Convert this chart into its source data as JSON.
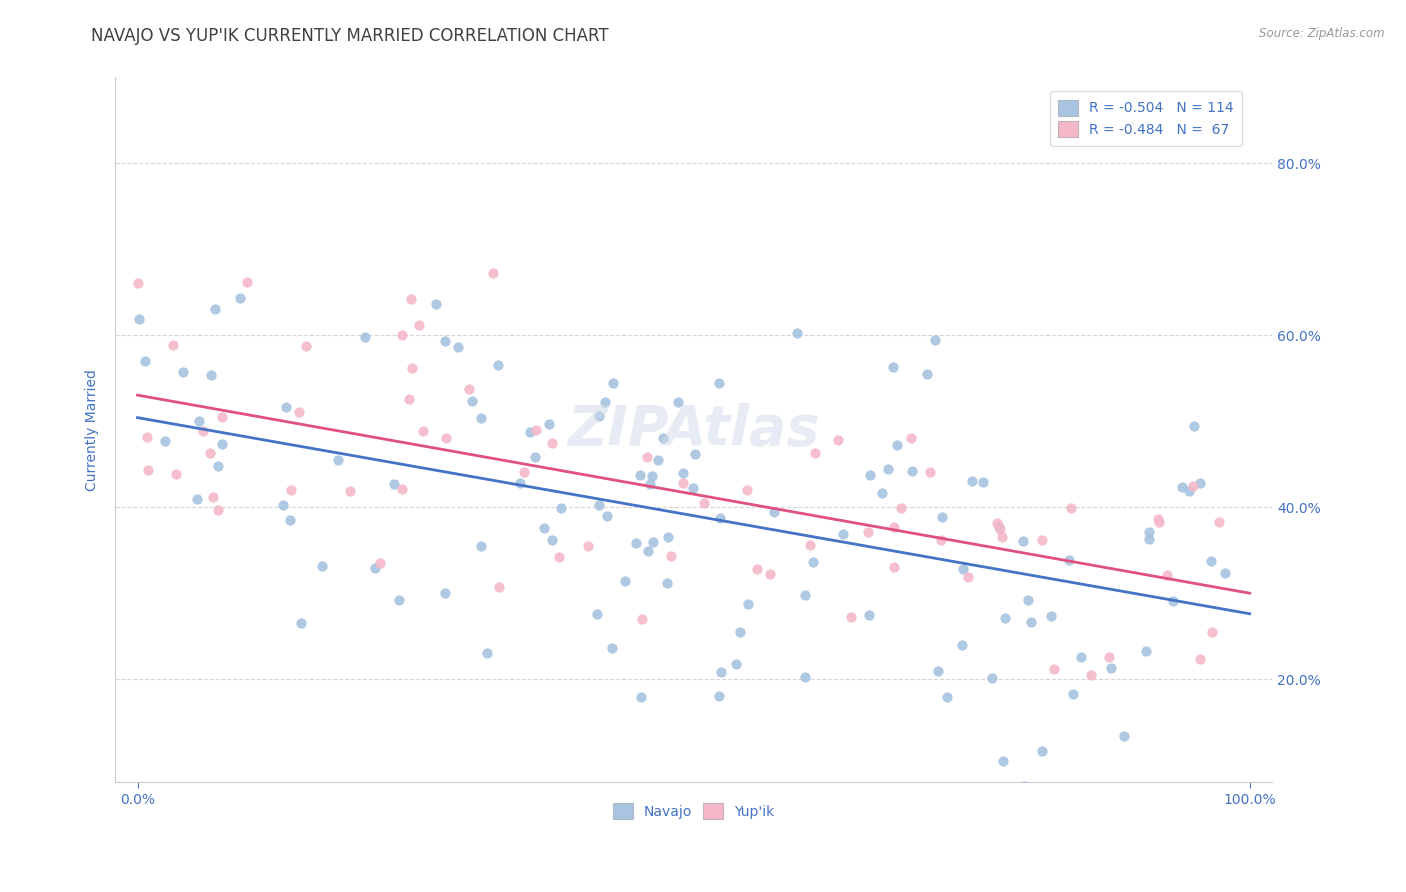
{
  "title": "NAVAJO VS YUP'IK CURRENTLY MARRIED CORRELATION CHART",
  "source": "Source: ZipAtlas.com",
  "ylabel": "Currently Married",
  "navajo_R": -0.504,
  "navajo_N": 114,
  "yupik_R": -0.484,
  "yupik_N": 67,
  "navajo_color": "#a8c4e0",
  "navajo_line_color": "#4472c4",
  "yupik_color": "#f4b8c8",
  "yupik_line_color": "#e05080",
  "title_color": "#404040",
  "axis_label_color": "#4472c4",
  "watermark": "ZIPAtlas",
  "background_color": "#ffffff",
  "grid_color": "#cccccc",
  "title_fontsize": 12,
  "axis_fontsize": 10,
  "legend_fontsize": 10,
  "navajo_seed": 7,
  "yupik_seed": 13,
  "xlim_min": -2,
  "xlim_max": 102,
  "ylim_min": 8,
  "ylim_max": 90,
  "yticks": [
    20,
    40,
    60,
    80
  ],
  "xticks": [
    0,
    100
  ]
}
